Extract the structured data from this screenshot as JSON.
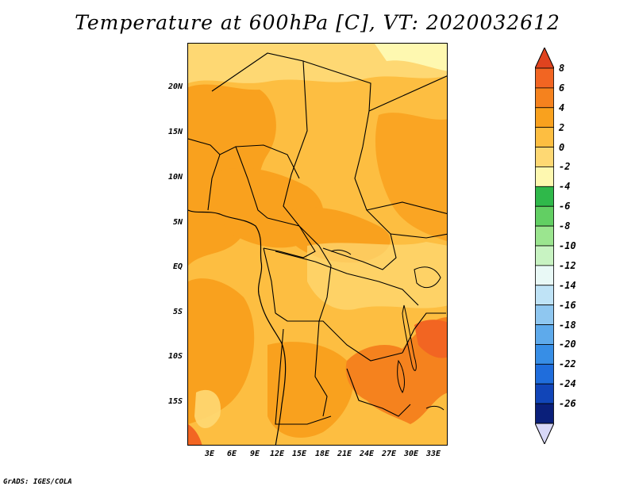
{
  "title": "Temperature at 600hPa [C], VT: 2020032612",
  "credit": "GrADS: IGES/COLA",
  "map": {
    "lat_ticks": [
      "20N",
      "15N",
      "10N",
      "5N",
      "EQ",
      "5S",
      "10S",
      "15S"
    ],
    "lon_ticks": [
      "3E",
      "6E",
      "9E",
      "12E",
      "15E",
      "18E",
      "21E",
      "24E",
      "27E",
      "30E",
      "33E"
    ],
    "field_colors": {
      "dominant": "#fdbe41",
      "warm": "#f9a11e",
      "warmer": "#f5821e",
      "hottest": "#f26522",
      "cool": "#fed873"
    }
  },
  "colorbar": {
    "labels": [
      "8",
      "6",
      "4",
      "2",
      "0",
      "-2",
      "-4",
      "-6",
      "-8",
      "-10",
      "-12",
      "-14",
      "-16",
      "-18",
      "-20",
      "-22",
      "-24",
      "-26"
    ],
    "colors": [
      "#e0431f",
      "#f26522",
      "#f5821e",
      "#f9a11e",
      "#fdbe41",
      "#fed873",
      "#fef8b0",
      "#2fb84a",
      "#62cf63",
      "#9be58f",
      "#c8f3c2",
      "#e9f9f6",
      "#bfe3f6",
      "#8fc7f0",
      "#5eaaeb",
      "#378ee6",
      "#1f6ddc",
      "#1145b8",
      "#0a1f7a",
      "#d8d8f8"
    ]
  }
}
